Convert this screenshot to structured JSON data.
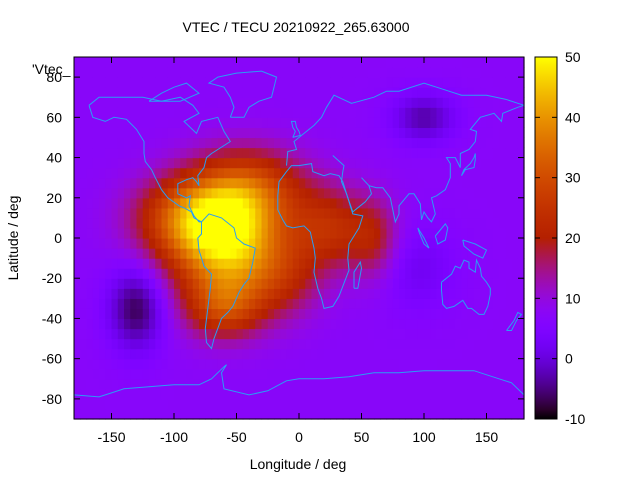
{
  "chart_data": {
    "type": "heatmap",
    "title": "VTEC / TECU 20210922_265.63000",
    "xlabel": "Longitude / deg",
    "ylabel": "Latitude / deg",
    "series_key": "'Vtec_",
    "xlim": [
      -180,
      180
    ],
    "ylim": [
      -90,
      90
    ],
    "x_ticks": [
      -150,
      -100,
      -50,
      0,
      50,
      100,
      150
    ],
    "y_ticks": [
      -80,
      -60,
      -40,
      -20,
      0,
      20,
      40,
      60,
      80
    ],
    "colorbar": {
      "min": -10,
      "max": 50,
      "ticks": [
        -10,
        0,
        10,
        20,
        30,
        40,
        50
      ]
    },
    "background_level": 7,
    "features": [
      {
        "lon": -55,
        "lat": -5,
        "level": 41,
        "width_lon": 45,
        "width_lat": 28
      },
      {
        "lon": -85,
        "lat": 10,
        "level": 30,
        "width_lon": 45,
        "width_lat": 20
      },
      {
        "lon": -40,
        "lat": 25,
        "level": 26,
        "width_lon": 45,
        "width_lat": 20
      },
      {
        "lon": -60,
        "lat": -35,
        "level": 22,
        "width_lon": 30,
        "width_lat": 15
      },
      {
        "lon": 25,
        "lat": 5,
        "level": 22,
        "width_lon": 30,
        "width_lat": 20
      },
      {
        "lon": 60,
        "lat": 0,
        "level": 18,
        "width_lon": 20,
        "width_lat": 20
      },
      {
        "lon": -10,
        "lat": -20,
        "level": 15,
        "width_lon": 30,
        "width_lat": 20
      },
      {
        "lon": -130,
        "lat": -35,
        "level": -7,
        "width_lon": 22,
        "width_lat": 20
      },
      {
        "lon": 100,
        "lat": 60,
        "level": -3,
        "width_lon": 25,
        "width_lat": 12
      },
      {
        "lon": 95,
        "lat": -15,
        "level": 2,
        "width_lon": 30,
        "width_lat": 20
      }
    ]
  }
}
